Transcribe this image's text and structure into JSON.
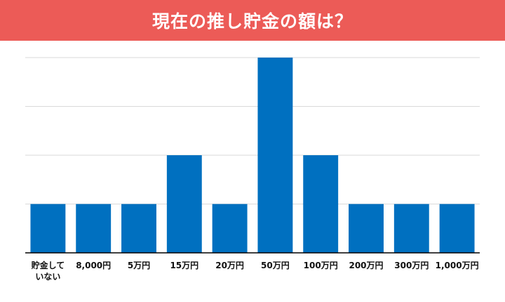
{
  "title": "現在の推し貯金の額は？",
  "colors": {
    "banner": "#ec5b57",
    "bar": "#0070c0",
    "grid": "#d9d9d9",
    "axis": "#000000"
  },
  "chart_data": {
    "type": "bar",
    "title": "現在の推し貯金の額は？",
    "xlabel": "",
    "ylabel": "",
    "categories": [
      [
        "貯金して",
        "いない"
      ],
      [
        "8,000円"
      ],
      [
        "5万円"
      ],
      [
        "15万円"
      ],
      [
        "20万円"
      ],
      [
        "50万円"
      ],
      [
        "100万円"
      ],
      [
        "200万円"
      ],
      [
        "300万円"
      ],
      [
        "1,000万円"
      ]
    ],
    "values": [
      1,
      1,
      1,
      2,
      1,
      4,
      2,
      1,
      1,
      1
    ],
    "ylim": [
      0,
      4
    ],
    "grid": true,
    "y_tick_labels_visible": false
  }
}
